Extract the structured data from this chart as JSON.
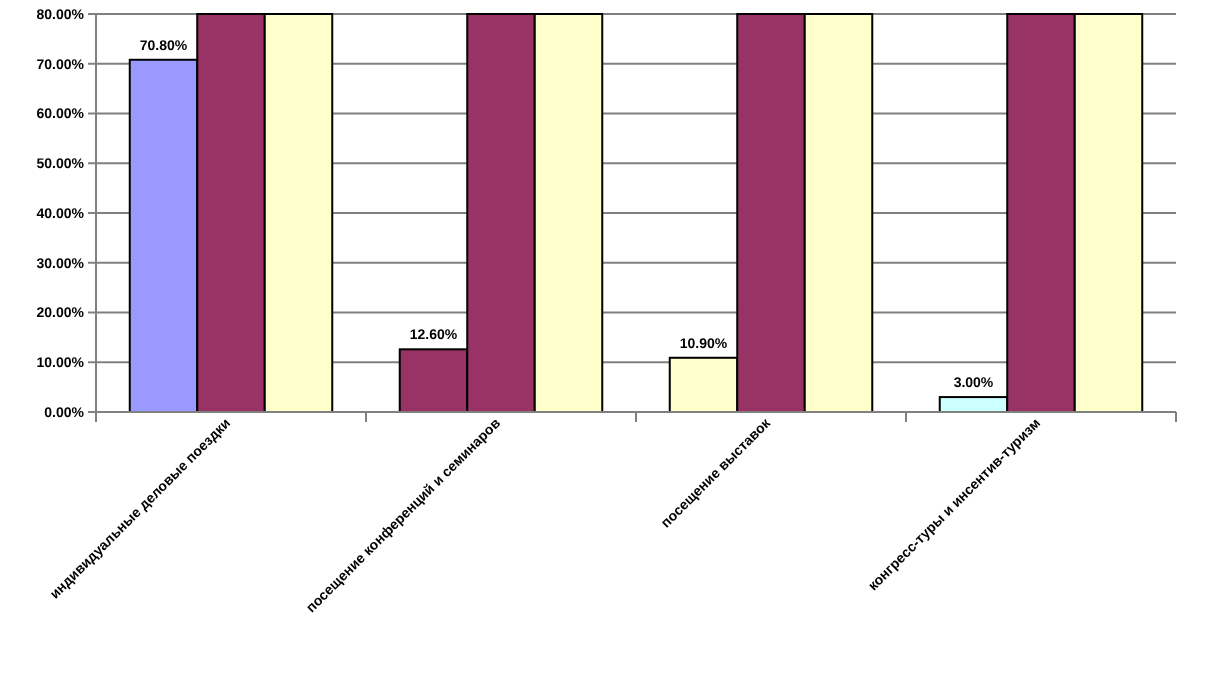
{
  "chart_data": {
    "type": "bar",
    "categories": [
      "индивидуальные деловые поездки",
      "посещение конференций и семинаров",
      "посещение выставок",
      "конгресс-туры и инсентив-туризм"
    ],
    "series": [
      {
        "colors": [
          "#9999ff",
          "#993366",
          "#ffffcc",
          "#ccffff"
        ],
        "values": [
          70.8,
          12.6,
          10.9,
          3.0
        ],
        "value_labels": [
          "70.80%",
          "12.60%",
          "10.90%",
          "3.00%"
        ]
      },
      {
        "color": "#993366",
        "values": [
          80,
          80,
          80,
          80
        ]
      },
      {
        "color": "#ffffcc",
        "values": [
          80,
          80,
          80,
          80
        ]
      }
    ],
    "ylim": [
      0,
      80
    ],
    "yticks": [
      {
        "value": 0,
        "label": "0.00%"
      },
      {
        "value": 10,
        "label": "10.00%"
      },
      {
        "value": 20,
        "label": "20.00%"
      },
      {
        "value": 30,
        "label": "30.00%"
      },
      {
        "value": 40,
        "label": "40.00%"
      },
      {
        "value": 50,
        "label": "50.00%"
      },
      {
        "value": 60,
        "label": "60.00%"
      },
      {
        "value": 70,
        "label": "70.00%"
      },
      {
        "value": 80,
        "label": "80.00%"
      }
    ],
    "grid": "y"
  }
}
